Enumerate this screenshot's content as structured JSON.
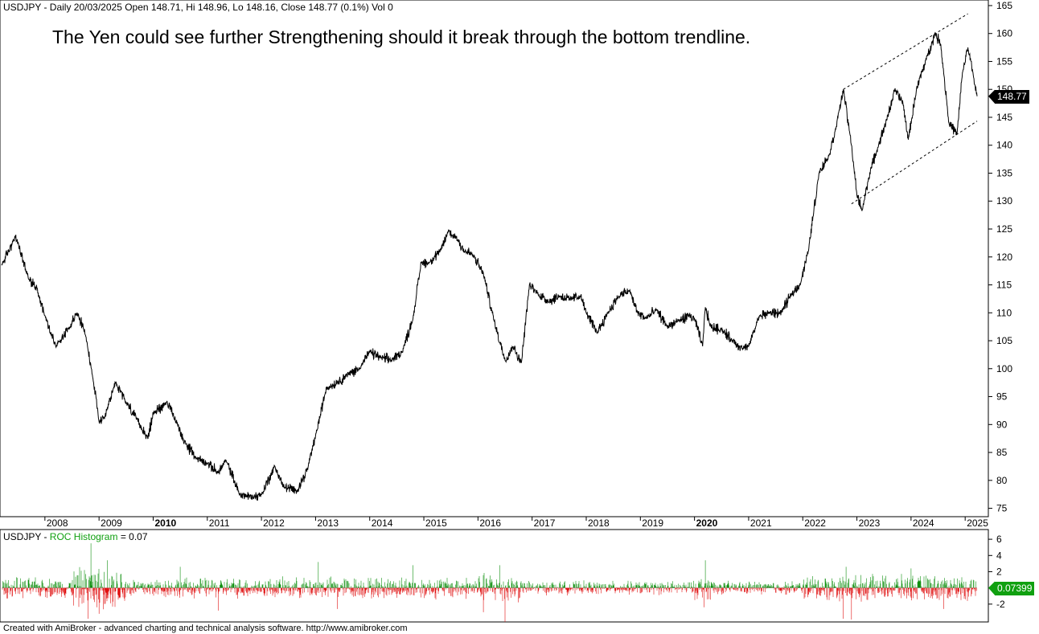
{
  "header": {
    "symbol": "USDJPY",
    "info": " - Daily 20/03/2025 Open 148.71, Hi 148.96, Lo 148.16, Close 148.77 (0.1%) Vol 0"
  },
  "annotation": "The Yen could see further Strengthening should it break through the bottom trendline.",
  "sub_header": {
    "symbol": "USDJPY - ",
    "indicator": "ROC Histogram",
    "value_text": " = 0.07"
  },
  "footer": "Created with AmiBroker - advanced charting and technical analysis software. http://www.amibroker.com",
  "colors": {
    "price_line": "#000000",
    "histogram_positive": "#109010",
    "histogram_negative": "#e01010",
    "last_price_box": "#000000",
    "roc_box": "#10a010",
    "trend_lines": "#000000"
  },
  "chart_data": [
    {
      "type": "line",
      "title": "USDJPY Daily",
      "y_ticks": [
        75,
        80,
        85,
        90,
        95,
        100,
        105,
        110,
        115,
        120,
        125,
        130,
        135,
        140,
        145,
        150,
        155,
        160,
        165
      ],
      "ylim": [
        73.5,
        166
      ],
      "x_range_years": [
        2007.2,
        2025.22
      ],
      "x_ticks": [
        {
          "label": "2008",
          "bold": false
        },
        {
          "label": "2009",
          "bold": false
        },
        {
          "label": "2010",
          "bold": true
        },
        {
          "label": "2011",
          "bold": false
        },
        {
          "label": "2012",
          "bold": false
        },
        {
          "label": "2013",
          "bold": false
        },
        {
          "label": "2014",
          "bold": false
        },
        {
          "label": "2015",
          "bold": false
        },
        {
          "label": "2016",
          "bold": false
        },
        {
          "label": "2017",
          "bold": false
        },
        {
          "label": "2018",
          "bold": false
        },
        {
          "label": "2019",
          "bold": false
        },
        {
          "label": "2020",
          "bold": true
        },
        {
          "label": "2021",
          "bold": false
        },
        {
          "label": "2022",
          "bold": false
        },
        {
          "label": "2023",
          "bold": false
        },
        {
          "label": "2024",
          "bold": false
        },
        {
          "label": "2025",
          "bold": false
        }
      ],
      "last_price_label": "148.77",
      "x_years": [
        2007.2,
        2007.45,
        2007.5,
        2007.7,
        2007.85,
        2008.0,
        2008.2,
        2008.45,
        2008.6,
        2008.75,
        2008.9,
        2009.0,
        2009.1,
        2009.3,
        2009.5,
        2009.7,
        2009.9,
        2010.0,
        2010.25,
        2010.45,
        2010.6,
        2010.8,
        2011.0,
        2011.2,
        2011.35,
        2011.6,
        2011.85,
        2012.0,
        2012.25,
        2012.4,
        2012.65,
        2012.85,
        2013.0,
        2013.2,
        2013.4,
        2013.6,
        2013.8,
        2014.0,
        2014.2,
        2014.4,
        2014.6,
        2014.8,
        2014.95,
        2015.1,
        2015.3,
        2015.45,
        2015.6,
        2015.75,
        2015.9,
        2016.1,
        2016.3,
        2016.5,
        2016.65,
        2016.8,
        2016.95,
        2017.1,
        2017.3,
        2017.5,
        2017.7,
        2017.9,
        2018.0,
        2018.2,
        2018.4,
        2018.6,
        2018.8,
        2018.95,
        2019.1,
        2019.3,
        2019.5,
        2019.7,
        2019.9,
        2020.0,
        2020.15,
        2020.2,
        2020.3,
        2020.5,
        2020.7,
        2020.9,
        2021.0,
        2021.2,
        2021.4,
        2021.6,
        2021.8,
        2021.95,
        2022.1,
        2022.3,
        2022.5,
        2022.65,
        2022.75,
        2022.9,
        2023.0,
        2023.1,
        2023.25,
        2023.4,
        2023.55,
        2023.7,
        2023.85,
        2023.95,
        2024.1,
        2024.3,
        2024.45,
        2024.55,
        2024.7,
        2024.85,
        2024.95,
        2025.05,
        2025.15,
        2025.22
      ],
      "y_values": [
        118.5,
        123.5,
        122.5,
        116,
        114.5,
        109.5,
        104,
        107.5,
        110,
        106,
        97.5,
        90.5,
        91,
        97.5,
        94,
        91,
        87.5,
        92,
        94,
        90,
        86.5,
        84,
        83,
        81.5,
        83.5,
        77.5,
        77,
        77.5,
        82.5,
        79,
        78,
        82,
        88,
        96.5,
        97.5,
        99,
        100,
        103,
        102,
        101.5,
        103,
        109,
        119,
        119,
        121,
        124.5,
        123.5,
        121,
        120.5,
        117,
        108.5,
        101.5,
        104,
        101,
        115,
        113.5,
        112,
        113,
        112.5,
        113,
        110,
        106.5,
        110,
        113,
        114,
        110,
        109,
        110.5,
        107.5,
        108.5,
        109.5,
        109,
        104,
        111,
        107.5,
        107,
        105,
        103.5,
        104,
        109.5,
        110,
        110,
        113.5,
        115,
        121,
        135,
        138.5,
        145,
        150,
        140,
        131,
        128.5,
        135.5,
        140,
        144.5,
        150,
        147.5,
        141,
        150,
        156,
        160,
        158,
        144,
        142,
        153,
        157.5,
        152.5,
        148.77
      ]
    },
    {
      "type": "bar",
      "title": "ROC Histogram",
      "y_ticks": [
        -2,
        2,
        4,
        6
      ],
      "ylim": [
        -4.2,
        7.2
      ],
      "last_value_label": "0.07399",
      "volatility_regimes": [
        {
          "x_start": 2007.2,
          "x_end": 2008.5,
          "amplitude": 1.2
        },
        {
          "x_start": 2008.5,
          "x_end": 2009.5,
          "amplitude": 2.4
        },
        {
          "x_start": 2009.5,
          "x_end": 2012.8,
          "amplitude": 1.2
        },
        {
          "x_start": 2012.8,
          "x_end": 2016.0,
          "amplitude": 1.3
        },
        {
          "x_start": 2016.0,
          "x_end": 2016.8,
          "amplitude": 1.7
        },
        {
          "x_start": 2016.8,
          "x_end": 2020.0,
          "amplitude": 0.8
        },
        {
          "x_start": 2020.0,
          "x_end": 2020.4,
          "amplitude": 1.4
        },
        {
          "x_start": 2020.4,
          "x_end": 2022.0,
          "amplitude": 0.8
        },
        {
          "x_start": 2022.0,
          "x_end": 2025.22,
          "amplitude": 1.5
        }
      ],
      "spikes": [
        {
          "x": 2008.85,
          "value": 5.5
        },
        {
          "x": 2008.8,
          "value": -3.8
        },
        {
          "x": 2009.0,
          "value": -3.2
        },
        {
          "x": 2009.15,
          "value": 3.4
        },
        {
          "x": 2010.5,
          "value": 2.6
        },
        {
          "x": 2011.2,
          "value": -2.8
        },
        {
          "x": 2013.05,
          "value": 3.2
        },
        {
          "x": 2013.4,
          "value": -2.6
        },
        {
          "x": 2014.8,
          "value": 2.8
        },
        {
          "x": 2016.1,
          "value": -3.0
        },
        {
          "x": 2016.5,
          "value": -4.2
        },
        {
          "x": 2016.4,
          "value": 2.8
        },
        {
          "x": 2020.2,
          "value": 3.4
        },
        {
          "x": 2020.18,
          "value": -2.4
        },
        {
          "x": 2022.75,
          "value": -3.8
        },
        {
          "x": 2022.8,
          "value": 2.6
        },
        {
          "x": 2022.9,
          "value": -3.9
        },
        {
          "x": 2024.0,
          "value": 2.4
        },
        {
          "x": 2024.6,
          "value": -2.6
        }
      ]
    }
  ]
}
